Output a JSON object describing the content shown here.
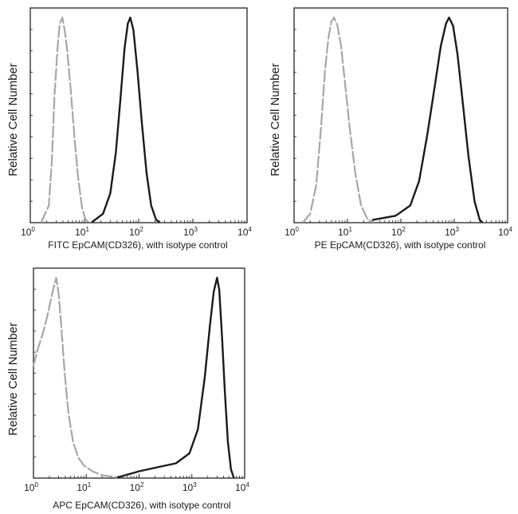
{
  "chart_data": [
    {
      "type": "line",
      "ylabel": "Relative Cell Number",
      "xlabel": "FITC  EpCAM(CD326),  with isotype control",
      "xscale": "log",
      "xlim": [
        1,
        10000
      ],
      "x_ticks": [
        "10",
        "10",
        "10",
        "10",
        "10"
      ],
      "x_tick_exponents": [
        "0",
        "1",
        "2",
        "3",
        "4"
      ],
      "series": [
        {
          "name": "isotype control",
          "color": "#a6a6a6",
          "dash": true,
          "points": [
            [
              1.6,
              0
            ],
            [
              2.2,
              8
            ],
            [
              2.5,
              30
            ],
            [
              2.8,
              62
            ],
            [
              3.2,
              86
            ],
            [
              3.5,
              97
            ],
            [
              3.9,
              100
            ],
            [
              4.3,
              94
            ],
            [
              4.8,
              84
            ],
            [
              5.6,
              64
            ],
            [
              6.5,
              42
            ],
            [
              7.6,
              22
            ],
            [
              9,
              7
            ],
            [
              10.5,
              1
            ],
            [
              12,
              0
            ]
          ]
        },
        {
          "name": "EpCAM(CD326)",
          "color": "#1a1a1a",
          "dash": false,
          "points": [
            [
              14,
              0
            ],
            [
              22,
              4
            ],
            [
              30,
              14
            ],
            [
              38,
              34
            ],
            [
              46,
              60
            ],
            [
              55,
              85
            ],
            [
              63,
              97
            ],
            [
              70,
              100
            ],
            [
              80,
              94
            ],
            [
              95,
              74
            ],
            [
              115,
              48
            ],
            [
              140,
              24
            ],
            [
              170,
              8
            ],
            [
              210,
              1
            ],
            [
              240,
              0
            ]
          ]
        }
      ]
    },
    {
      "type": "line",
      "ylabel": "Relative Cell Number",
      "xlabel": "PE  EpCAM(CD326),  with isotype control",
      "xscale": "log",
      "xlim": [
        1,
        10000
      ],
      "x_ticks": [
        "10",
        "10",
        "10",
        "10",
        "10"
      ],
      "x_tick_exponents": [
        "0",
        "1",
        "2",
        "3",
        "4"
      ],
      "series": [
        {
          "name": "isotype control",
          "color": "#a6a6a6",
          "dash": true,
          "points": [
            [
              1.5,
              0
            ],
            [
              2,
              4
            ],
            [
              2.6,
              18
            ],
            [
              3.2,
              46
            ],
            [
              3.8,
              74
            ],
            [
              4.4,
              90
            ],
            [
              5,
              98
            ],
            [
              5.6,
              100
            ],
            [
              6.5,
              96
            ],
            [
              7.6,
              86
            ],
            [
              9,
              68
            ],
            [
              11,
              46
            ],
            [
              14,
              24
            ],
            [
              18,
              8
            ],
            [
              24,
              1
            ],
            [
              30,
              0
            ]
          ]
        },
        {
          "name": "EpCAM(CD326)",
          "color": "#1a1a1a",
          "dash": false,
          "points": [
            [
              30,
              1
            ],
            [
              80,
              3
            ],
            [
              150,
              8
            ],
            [
              220,
              20
            ],
            [
              310,
              42
            ],
            [
              430,
              66
            ],
            [
              560,
              86
            ],
            [
              700,
              97
            ],
            [
              800,
              100
            ],
            [
              950,
              96
            ],
            [
              1150,
              82
            ],
            [
              1450,
              58
            ],
            [
              1850,
              32
            ],
            [
              2400,
              10
            ],
            [
              3000,
              1
            ],
            [
              3300,
              0
            ]
          ]
        }
      ]
    },
    {
      "type": "line",
      "ylabel": "Relative Cell Number",
      "xlabel": "APC EpCAM(CD326), with isotype control",
      "xscale": "log",
      "xlim": [
        1,
        10000
      ],
      "x_ticks": [
        "10",
        "10",
        "10",
        "10",
        "10"
      ],
      "x_tick_exponents": [
        "0",
        "1",
        "2",
        "3",
        "4"
      ],
      "series": [
        {
          "name": "isotype control",
          "color": "#a6a6a6",
          "dash": true,
          "points": [
            [
              1,
              56
            ],
            [
              1.2,
              64
            ],
            [
              1.5,
              72
            ],
            [
              1.8,
              80
            ],
            [
              2.1,
              88
            ],
            [
              2.4,
              95
            ],
            [
              2.7,
              100
            ],
            [
              3,
              92
            ],
            [
              3.4,
              74
            ],
            [
              3.9,
              52
            ],
            [
              4.6,
              32
            ],
            [
              5.6,
              18
            ],
            [
              7,
              10
            ],
            [
              9,
              6
            ],
            [
              13,
              3
            ],
            [
              20,
              1
            ],
            [
              40,
              0
            ]
          ]
        },
        {
          "name": "EpCAM(CD326)",
          "color": "#1a1a1a",
          "dash": false,
          "points": [
            [
              40,
              0
            ],
            [
              100,
              3
            ],
            [
              220,
              5
            ],
            [
              500,
              7
            ],
            [
              900,
              12
            ],
            [
              1300,
              24
            ],
            [
              1750,
              50
            ],
            [
              2200,
              76
            ],
            [
              2600,
              93
            ],
            [
              3000,
              100
            ],
            [
              3300,
              94
            ],
            [
              3700,
              72
            ],
            [
              4200,
              44
            ],
            [
              4800,
              18
            ],
            [
              5500,
              4
            ],
            [
              6200,
              0
            ]
          ]
        }
      ]
    }
  ]
}
